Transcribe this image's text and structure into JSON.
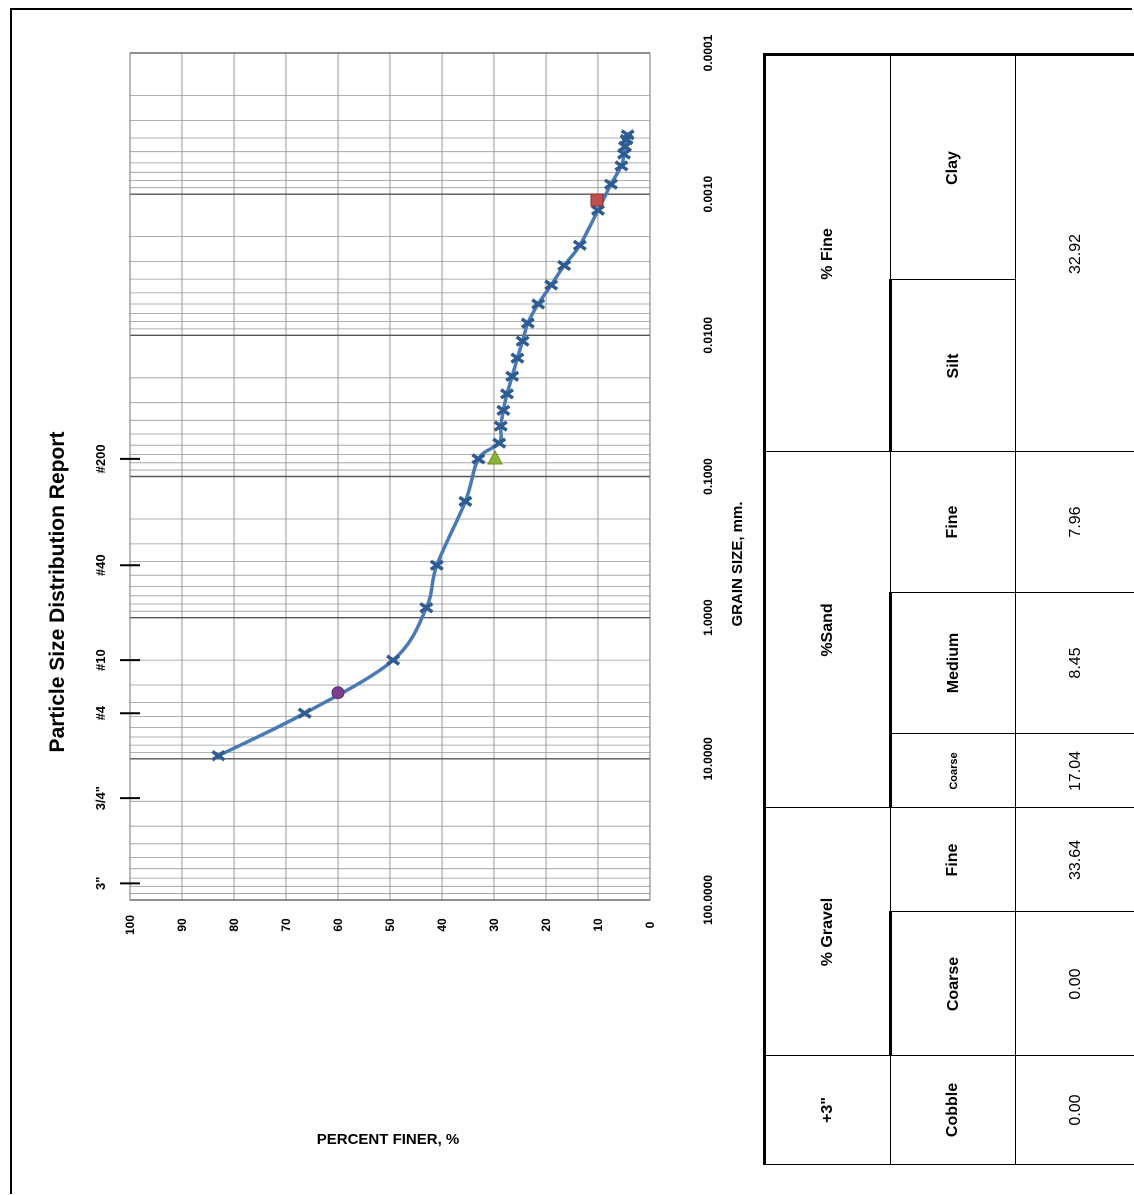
{
  "chart_data": {
    "type": "scatter",
    "title": "Particle Size Distribution Report",
    "xlabel": "GRAIN SIZE, mm.",
    "ylabel": "PERCENT FINER, %",
    "x_scale": "log",
    "xlim": [
      100,
      0.0001
    ],
    "ylim": [
      0,
      100
    ],
    "grid": true,
    "x_tick_labels": [
      "100.0000",
      "10.0000",
      "1.0000",
      "0.1000",
      "0.0100",
      "0.0010",
      "0.0001"
    ],
    "y_tick_labels": [
      "100",
      "90",
      "80",
      "70",
      "60",
      "50",
      "40",
      "30",
      "20",
      "10",
      "0"
    ],
    "sieve_marks": [
      {
        "label": "3\"",
        "size_mm": 76.2
      },
      {
        "label": "3/4\"",
        "size_mm": 19.0
      },
      {
        "label": "#4",
        "size_mm": 4.75
      },
      {
        "label": "#10",
        "size_mm": 2.0
      },
      {
        "label": "#40",
        "size_mm": 0.425
      },
      {
        "label": "#200",
        "size_mm": 0.075
      }
    ],
    "series": [
      {
        "values": [
          {
            "x": 9.5,
            "y": 83
          },
          {
            "x": 4.75,
            "y": 66.4
          },
          {
            "x": 2.0,
            "y": 49.4
          },
          {
            "x": 0.85,
            "y": 43
          },
          {
            "x": 0.425,
            "y": 41
          },
          {
            "x": 0.15,
            "y": 35.5
          },
          {
            "x": 0.075,
            "y": 33
          },
          {
            "x": 0.058,
            "y": 29
          },
          {
            "x": 0.044,
            "y": 28.7
          },
          {
            "x": 0.034,
            "y": 28.2
          },
          {
            "x": 0.026,
            "y": 27.5
          },
          {
            "x": 0.0195,
            "y": 26.5
          },
          {
            "x": 0.0145,
            "y": 25.5
          },
          {
            "x": 0.011,
            "y": 24.5
          },
          {
            "x": 0.0082,
            "y": 23.5
          },
          {
            "x": 0.006,
            "y": 21.5
          },
          {
            "x": 0.0044,
            "y": 19
          },
          {
            "x": 0.0032,
            "y": 16.5
          },
          {
            "x": 0.0023,
            "y": 13.5
          },
          {
            "x": 0.0013,
            "y": 10
          },
          {
            "x": 0.00085,
            "y": 7.5
          },
          {
            "x": 0.00063,
            "y": 5.5
          },
          {
            "x": 0.00052,
            "y": 5
          },
          {
            "x": 0.00046,
            "y": 4.8
          },
          {
            "x": 0.00041,
            "y": 4.5
          },
          {
            "x": 0.00038,
            "y": 4.3
          }
        ]
      }
    ],
    "markers": [
      {
        "shape": "circle",
        "color": "#7b3f8e",
        "x": 3.4,
        "y": 60
      },
      {
        "shape": "triangle",
        "color": "#8db33a",
        "x": 0.074,
        "y": 29.8
      },
      {
        "shape": "square",
        "color": "#c0504d",
        "x": 0.0011,
        "y": 10.2
      }
    ]
  },
  "table": {
    "rows": [
      {
        "group": "+3\"",
        "cells": [
          {
            "label": "Cobble",
            "value": "0.00"
          }
        ]
      },
      {
        "group": "% Gravel",
        "cells": [
          {
            "label": "Coarse",
            "value": "0.00"
          },
          {
            "label": "Fine",
            "value": "33.64"
          }
        ]
      },
      {
        "group": "%Sand",
        "cells": [
          {
            "label": "Coarse",
            "value": "17.04"
          },
          {
            "label": "Medium",
            "value": "8.45"
          },
          {
            "label": "Fine",
            "value": "7.96"
          }
        ]
      },
      {
        "group": "% Fine",
        "cells": [
          {
            "label": "Silt"
          },
          {
            "label": "Clay"
          }
        ],
        "value": "32.92"
      }
    ]
  },
  "colors": {
    "line": "#4a7ab5",
    "marker": "#2f5b93",
    "grid": "#999999",
    "grid_dark": "#555555"
  }
}
